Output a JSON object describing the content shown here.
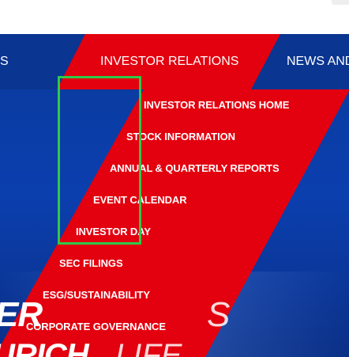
{
  "nav": {
    "left_partial_label": "S",
    "active_label": "INVESTOR RELATIONS",
    "right_partial_label": "NEWS AND"
  },
  "dropdown": {
    "items": [
      "INVESTOR RELATIONS HOME",
      "STOCK INFORMATION",
      "ANNUAL & QUARTERLY REPORTS",
      "EVENT CALENDAR",
      "INVESTOR DAY",
      "SEC FILINGS",
      "ESG/SUSTAINABILITY",
      "CORPORATE GOVERNANCE"
    ]
  },
  "hero": {
    "line1_left": "ER",
    "line1_right": "S",
    "line2_left": "URICH",
    "line2_right": "LIFE"
  },
  "colors": {
    "brand_blue": "#0a3a9c",
    "brand_red": "#e3000f",
    "highlight_green": "#2ec94a"
  }
}
